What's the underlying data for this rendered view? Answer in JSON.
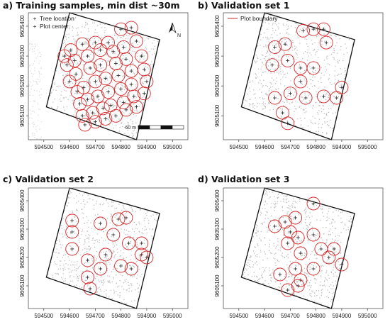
{
  "chart_data": [
    {
      "type": "scatter",
      "title": "a) Training samples, min dist ~30m",
      "xlim": [
        594440,
        595060
      ],
      "ylim": [
        9605020,
        9605445
      ],
      "x_ticks": [
        594500,
        594600,
        594700,
        594800,
        594900,
        595000
      ],
      "y_ticks": [
        9605100,
        9605200,
        9605300,
        9605400
      ],
      "legend": [
        "Tree location",
        "Plot center"
      ],
      "north_arrow_label": "N",
      "scale_bar_label": "60 m",
      "boundary_corners": [
        [
          594600,
          9605445
        ],
        [
          594950,
          9605355
        ],
        [
          594860,
          9605020
        ],
        [
          594510,
          9605130
        ]
      ],
      "plot_centers": [
        [
          594580,
          9605300
        ],
        [
          594605,
          9605320
        ],
        [
          594650,
          9605340
        ],
        [
          594700,
          9605345
        ],
        [
          594750,
          9605345
        ],
        [
          594800,
          9605390
        ],
        [
          594840,
          9605395
        ],
        [
          594590,
          9605270
        ],
        [
          594620,
          9605285
        ],
        [
          594670,
          9605300
        ],
        [
          594720,
          9605320
        ],
        [
          594770,
          9605315
        ],
        [
          594810,
          9605330
        ],
        [
          594860,
          9605350
        ],
        [
          594600,
          9605215
        ],
        [
          594625,
          9605240
        ],
        [
          594680,
          9605260
        ],
        [
          594720,
          9605270
        ],
        [
          594780,
          9605275
        ],
        [
          594820,
          9605290
        ],
        [
          594880,
          9605300
        ],
        [
          594630,
          9605180
        ],
        [
          594655,
          9605195
        ],
        [
          594700,
          9605215
        ],
        [
          594740,
          9605225
        ],
        [
          594790,
          9605235
        ],
        [
          594840,
          9605250
        ],
        [
          594890,
          9605255
        ],
        [
          594640,
          9605140
        ],
        [
          594670,
          9605155
        ],
        [
          594710,
          9605165
        ],
        [
          594750,
          9605180
        ],
        [
          594800,
          9605190
        ],
        [
          594840,
          9605205
        ],
        [
          594900,
          9605215
        ],
        [
          594650,
          9605100
        ],
        [
          594690,
          9605110
        ],
        [
          594730,
          9605125
        ],
        [
          594760,
          9605135
        ],
        [
          594810,
          9605145
        ],
        [
          594850,
          9605165
        ],
        [
          594890,
          9605175
        ],
        [
          594660,
          9605070
        ],
        [
          594700,
          9605080
        ],
        [
          594740,
          9605090
        ],
        [
          594780,
          9605100
        ],
        [
          594820,
          9605120
        ],
        [
          594860,
          9605130
        ]
      ]
    },
    {
      "type": "scatter",
      "title": "b) Validation set 1",
      "xlim": [
        594440,
        595060
      ],
      "ylim": [
        9605020,
        9605445
      ],
      "x_ticks": [
        594500,
        594600,
        594700,
        594800,
        594900,
        595000
      ],
      "y_ticks": [
        9605100,
        9605200,
        9605300,
        9605400
      ],
      "legend": [
        "Plot boundary"
      ],
      "boundary_corners": [
        [
          594600,
          9605445
        ],
        [
          594950,
          9605355
        ],
        [
          594860,
          9605020
        ],
        [
          594510,
          9605130
        ]
      ],
      "plot_centers": [
        [
          594640,
          9605330
        ],
        [
          594680,
          9605340
        ],
        [
          594750,
          9605385
        ],
        [
          594790,
          9605390
        ],
        [
          594830,
          9605390
        ],
        [
          594840,
          9605345
        ],
        [
          594630,
          9605270
        ],
        [
          594690,
          9605285
        ],
        [
          594740,
          9605260
        ],
        [
          594790,
          9605260
        ],
        [
          594740,
          9605215
        ],
        [
          594640,
          9605160
        ],
        [
          594700,
          9605175
        ],
        [
          594760,
          9605160
        ],
        [
          594830,
          9605165
        ],
        [
          594880,
          9605160
        ],
        [
          594900,
          9605195
        ],
        [
          594670,
          9605110
        ],
        [
          594690,
          9605075
        ]
      ]
    },
    {
      "type": "scatter",
      "title": "c) Validation set 2",
      "xlim": [
        594440,
        595060
      ],
      "ylim": [
        9605020,
        9605445
      ],
      "x_ticks": [
        594500,
        594600,
        594700,
        594800,
        594900,
        595000
      ],
      "y_ticks": [
        9605100,
        9605200,
        9605300,
        9605400
      ],
      "boundary_corners": [
        [
          594600,
          9605445
        ],
        [
          594950,
          9605355
        ],
        [
          594860,
          9605020
        ],
        [
          594510,
          9605130
        ]
      ],
      "plot_centers": [
        [
          594610,
          9605330
        ],
        [
          594610,
          9605290
        ],
        [
          594610,
          9605230
        ],
        [
          594670,
          9605190
        ],
        [
          594670,
          9605130
        ],
        [
          594680,
          9605090
        ],
        [
          594720,
          9605320
        ],
        [
          594790,
          9605335
        ],
        [
          594770,
          9605280
        ],
        [
          594740,
          9605210
        ],
        [
          594720,
          9605160
        ],
        [
          594820,
          9605340
        ],
        [
          594830,
          9605250
        ],
        [
          594800,
          9605170
        ],
        [
          594840,
          9605160
        ],
        [
          594880,
          9605250
        ],
        [
          594880,
          9605210
        ],
        [
          594900,
          9605200
        ]
      ]
    },
    {
      "type": "scatter",
      "title": "d) Validation set 3",
      "xlim": [
        594440,
        595060
      ],
      "ylim": [
        9605020,
        9605445
      ],
      "x_ticks": [
        594500,
        594600,
        594700,
        594800,
        594900,
        595000
      ],
      "y_ticks": [
        9605100,
        9605200,
        9605300,
        9605400
      ],
      "boundary_corners": [
        [
          594600,
          9605445
        ],
        [
          594950,
          9605355
        ],
        [
          594860,
          9605020
        ],
        [
          594510,
          9605130
        ]
      ],
      "plot_centers": [
        [
          594680,
          9605325
        ],
        [
          594700,
          9605290
        ],
        [
          594690,
          9605250
        ],
        [
          594640,
          9605310
        ],
        [
          594720,
          9605340
        ],
        [
          594790,
          9605390
        ],
        [
          594730,
          9605270
        ],
        [
          594790,
          9605280
        ],
        [
          594740,
          9605215
        ],
        [
          594820,
          9605230
        ],
        [
          594870,
          9605230
        ],
        [
          594850,
          9605200
        ],
        [
          594660,
          9605140
        ],
        [
          594720,
          9605160
        ],
        [
          594740,
          9605120
        ],
        [
          594790,
          9605160
        ],
        [
          594900,
          9605175
        ],
        [
          594690,
          9605085
        ],
        [
          594730,
          9605100
        ]
      ]
    }
  ],
  "colors": {
    "boundary": "#111111",
    "plot_circle": "#d62728",
    "plot_center": "#222222",
    "trees": "#bdbdbd"
  }
}
